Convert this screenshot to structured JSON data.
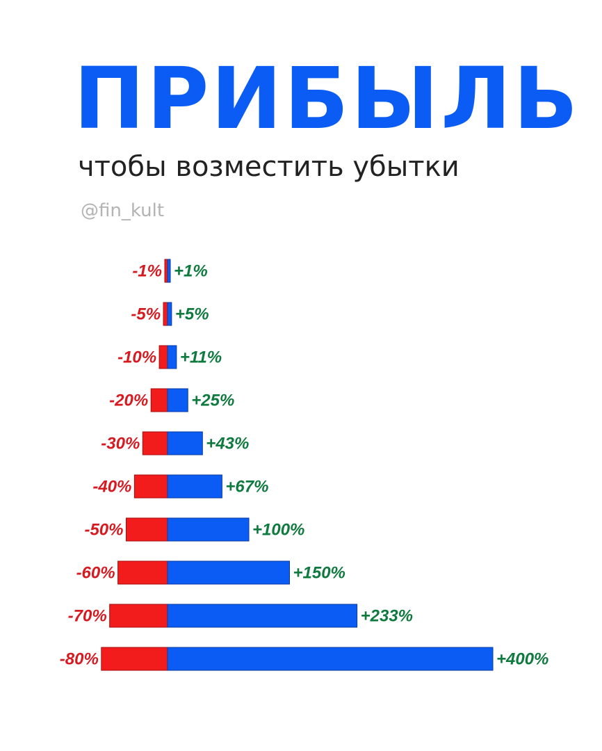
{
  "title": "ПРИБЫЛЬ",
  "subtitle": "чтобы возместить убытки",
  "handle": "@fin_kult",
  "colors": {
    "title": "#0a5cf5",
    "loss_bar": "#f21c1c",
    "gain_bar": "#0a5cf5",
    "loss_label": "#d71920",
    "gain_label": "#0e7a3e"
  },
  "chart_data": {
    "type": "bar",
    "orientation": "horizontal-diverging",
    "series": [
      {
        "values": [
          -1,
          -5,
          -10,
          -20,
          -30,
          -40,
          -50,
          -60,
          -70,
          -80
        ]
      },
      {
        "values": [
          1,
          5,
          11,
          25,
          43,
          67,
          100,
          150,
          233,
          400
        ]
      }
    ],
    "loss_labels": [
      "-1%",
      "-5%",
      "-10%",
      "-20%",
      "-30%",
      "-40%",
      "-50%",
      "-60%",
      "-70%",
      "-80%"
    ],
    "gain_labels": [
      "+1%",
      "+5%",
      "+11%",
      "+25%",
      "+43%",
      "+67%",
      "+100%",
      "+150%",
      "+233%",
      "+400%"
    ],
    "grid": false,
    "legend": "none"
  }
}
